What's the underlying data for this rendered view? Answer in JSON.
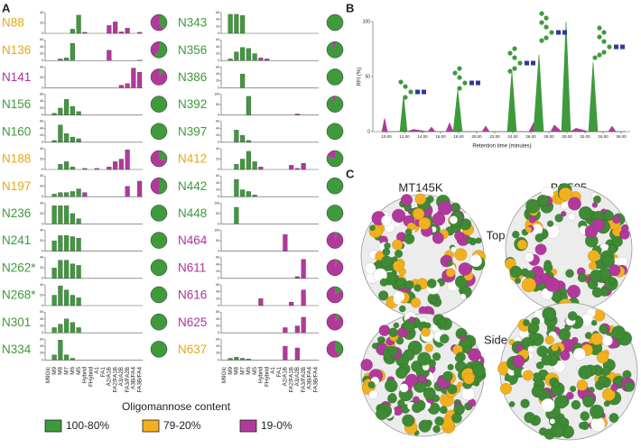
{
  "chart_data": [
    {
      "type": "bar-grid",
      "panel_label": "A",
      "categories": [
        "M9Glc",
        "M9",
        "M8",
        "M7",
        "M6",
        "M5",
        "Hybrid",
        "FHybrid",
        "A1",
        "FA1",
        "A2/A1B",
        "FA2/FA1B",
        "A3/A2B",
        "FA3/FA2B",
        "A3B/FA4",
        "FA3B/FA4"
      ],
      "bar_colors": [
        "#3f9a3c",
        "#3f9a3c",
        "#3f9a3c",
        "#3f9a3c",
        "#3f9a3c",
        "#3f9a3c",
        "#b2399b",
        "#b2399b",
        "#b2399b",
        "#b2399b",
        "#b2399b",
        "#b2399b",
        "#b2399b",
        "#b2399b",
        "#b2399b",
        "#b2399b"
      ],
      "pie_colors": [
        "#3f9a3c",
        "#b2399b"
      ],
      "sites": [
        {
          "name": "N88",
          "color": "#e6a817",
          "ylim": [
            0,
            40
          ],
          "yticks": [
            0,
            20,
            40
          ],
          "values": [
            0,
            0,
            0,
            0,
            8,
            35,
            2,
            0,
            0,
            0,
            15,
            22,
            3,
            10,
            0,
            2
          ],
          "pie": [
            40,
            60
          ]
        },
        {
          "name": "N136",
          "color": "#e6a817",
          "ylim": [
            0,
            60
          ],
          "yticks": [
            0,
            20,
            40,
            60
          ],
          "values": [
            0,
            0,
            5,
            8,
            50,
            0,
            0,
            0,
            0,
            0,
            30,
            0,
            0,
            0,
            0,
            1
          ],
          "pie": [
            60,
            40
          ]
        },
        {
          "name": "N141",
          "color": "#b0329a",
          "ylim": [
            0,
            40
          ],
          "yticks": [
            0,
            20,
            40
          ],
          "values": [
            0,
            0,
            0,
            0,
            0,
            0,
            0,
            0,
            0,
            0,
            0,
            0,
            5,
            8,
            38,
            30
          ],
          "pie": [
            10,
            90
          ]
        },
        {
          "name": "N156",
          "color": "#3f9a3c",
          "ylim": [
            0,
            60
          ],
          "yticks": [
            0,
            20,
            40,
            60
          ],
          "values": [
            0,
            5,
            20,
            45,
            25,
            10,
            0,
            0,
            0,
            0,
            0,
            0,
            0,
            0,
            0,
            0
          ],
          "pie": [
            100,
            0
          ]
        },
        {
          "name": "N160",
          "color": "#3f9a3c",
          "ylim": [
            0,
            60
          ],
          "yticks": [
            0,
            20,
            40,
            60
          ],
          "values": [
            0,
            5,
            50,
            25,
            15,
            10,
            0,
            0,
            0,
            0,
            0,
            0,
            0,
            0,
            0,
            0
          ],
          "pie": [
            100,
            0
          ]
        },
        {
          "name": "N188",
          "color": "#e6a817",
          "ylim": [
            0,
            40
          ],
          "yticks": [
            0,
            20,
            40
          ],
          "values": [
            0,
            0,
            10,
            15,
            5,
            0,
            2,
            0,
            2,
            0,
            5,
            15,
            20,
            38,
            0,
            0
          ],
          "pie": [
            30,
            70
          ]
        },
        {
          "name": "N197",
          "color": "#e6a817",
          "ylim": [
            0,
            40
          ],
          "yticks": [
            0,
            20,
            40
          ],
          "values": [
            0,
            5,
            8,
            8,
            10,
            15,
            8,
            0,
            0,
            0,
            0,
            0,
            0,
            20,
            0,
            30
          ],
          "pie": [
            50,
            50
          ]
        },
        {
          "name": "N236",
          "color": "#3f9a3c",
          "ylim": [
            0,
            40
          ],
          "yticks": [
            0,
            20,
            40
          ],
          "values": [
            0,
            35,
            35,
            35,
            20,
            10,
            0,
            0,
            0,
            0,
            0,
            0,
            0,
            0,
            0,
            0
          ],
          "pie": [
            100,
            0
          ]
        },
        {
          "name": "N241",
          "color": "#3f9a3c",
          "ylim": [
            0,
            40
          ],
          "yticks": [
            0,
            20,
            40
          ],
          "values": [
            0,
            20,
            30,
            30,
            28,
            25,
            0,
            0,
            0,
            0,
            0,
            0,
            0,
            0,
            0,
            0
          ],
          "pie": [
            100,
            0
          ]
        },
        {
          "name": "N262*",
          "color": "#3f9a3c",
          "ylim": [
            0,
            40
          ],
          "yticks": [
            0,
            20,
            40
          ],
          "values": [
            0,
            20,
            35,
            35,
            28,
            25,
            0,
            0,
            0,
            0,
            0,
            0,
            0,
            0,
            0,
            0
          ],
          "pie": [
            100,
            0
          ]
        },
        {
          "name": "N268*",
          "color": "#3f9a3c",
          "ylim": [
            0,
            40
          ],
          "yticks": [
            0,
            20,
            40
          ],
          "values": [
            0,
            20,
            38,
            30,
            20,
            15,
            0,
            0,
            0,
            0,
            0,
            0,
            0,
            0,
            0,
            0
          ],
          "pie": [
            100,
            0
          ]
        },
        {
          "name": "N301",
          "color": "#3f9a3c",
          "ylim": [
            0,
            60
          ],
          "yticks": [
            0,
            20,
            40,
            60
          ],
          "values": [
            0,
            15,
            25,
            40,
            30,
            15,
            0,
            0,
            0,
            0,
            0,
            0,
            0,
            0,
            0,
            0
          ],
          "pie": [
            100,
            0
          ]
        },
        {
          "name": "N334",
          "color": "#3f9a3c",
          "ylim": [
            0,
            60
          ],
          "yticks": [
            0,
            20,
            40,
            60
          ],
          "values": [
            0,
            15,
            58,
            15,
            5,
            0,
            0,
            0,
            0,
            0,
            0,
            0,
            0,
            0,
            0,
            0
          ],
          "pie": [
            100,
            0
          ]
        },
        {
          "name": "N343",
          "color": "#3f9a3c",
          "ylim": [
            0,
            60
          ],
          "yticks": [
            0,
            20,
            40,
            60
          ],
          "values": [
            0,
            55,
            55,
            52,
            0,
            0,
            0,
            0,
            0,
            0,
            0,
            0,
            0,
            0,
            0,
            0
          ],
          "pie": [
            100,
            0
          ]
        },
        {
          "name": "N356",
          "color": "#3f9a3c",
          "ylim": [
            0,
            60
          ],
          "yticks": [
            0,
            20,
            40,
            60
          ],
          "values": [
            0,
            5,
            25,
            38,
            35,
            20,
            8,
            5,
            0,
            0,
            0,
            0,
            0,
            0,
            0,
            0
          ],
          "pie": [
            95,
            5
          ]
        },
        {
          "name": "N386",
          "color": "#3f9a3c",
          "ylim": [
            0,
            60
          ],
          "yticks": [
            0,
            20,
            40,
            60
          ],
          "values": [
            0,
            0,
            0,
            40,
            0,
            0,
            0,
            0,
            0,
            0,
            0,
            0,
            0,
            0,
            0,
            0
          ],
          "pie": [
            100,
            0
          ]
        },
        {
          "name": "N392",
          "color": "#3f9a3c",
          "ylim": [
            0,
            100
          ],
          "yticks": [
            0,
            50,
            100
          ],
          "values": [
            0,
            0,
            0,
            0,
            90,
            0,
            0,
            0,
            0,
            0,
            0,
            0,
            5,
            0,
            0,
            0
          ],
          "pie": [
            95,
            5
          ]
        },
        {
          "name": "N397",
          "color": "#3f9a3c",
          "ylim": [
            0,
            60
          ],
          "yticks": [
            0,
            20,
            40,
            60
          ],
          "values": [
            0,
            0,
            35,
            20,
            5,
            0,
            0,
            0,
            0,
            0,
            0,
            0,
            0,
            0,
            0,
            0
          ],
          "pie": [
            100,
            0
          ]
        },
        {
          "name": "N412",
          "color": "#e6a817",
          "ylim": [
            0,
            40
          ],
          "yticks": [
            0,
            20,
            40
          ],
          "values": [
            0,
            0,
            10,
            20,
            35,
            15,
            5,
            0,
            0,
            0,
            0,
            8,
            2,
            12,
            0,
            0
          ],
          "pie": [
            80,
            20
          ]
        },
        {
          "name": "N442",
          "color": "#3f9a3c",
          "ylim": [
            0,
            60
          ],
          "yticks": [
            0,
            20,
            40,
            60
          ],
          "values": [
            0,
            0,
            50,
            20,
            15,
            5,
            0,
            0,
            0,
            0,
            0,
            0,
            0,
            0,
            0,
            0
          ],
          "pie": [
            100,
            0
          ]
        },
        {
          "name": "N448",
          "color": "#3f9a3c",
          "ylim": [
            0,
            100
          ],
          "yticks": [
            0,
            50,
            100
          ],
          "values": [
            0,
            0,
            80,
            0,
            0,
            0,
            0,
            0,
            0,
            0,
            0,
            0,
            0,
            0,
            0,
            0
          ],
          "pie": [
            100,
            0
          ]
        },
        {
          "name": "N464",
          "color": "#b0329a",
          "ylim": [
            0,
            100
          ],
          "yticks": [
            0,
            50,
            100
          ],
          "values": [
            0,
            0,
            0,
            0,
            0,
            0,
            0,
            0,
            0,
            0,
            80,
            0,
            0,
            0,
            0,
            0
          ],
          "pie": [
            5,
            95
          ]
        },
        {
          "name": "N611",
          "color": "#b0329a",
          "ylim": [
            0,
            60
          ],
          "yticks": [
            0,
            20,
            40,
            60
          ],
          "values": [
            0,
            0,
            0,
            0,
            0,
            0,
            0,
            0,
            0,
            0,
            0,
            0,
            5,
            55,
            0,
            0
          ],
          "pie": [
            5,
            95
          ]
        },
        {
          "name": "N616",
          "color": "#b0329a",
          "ylim": [
            0,
            60
          ],
          "yticks": [
            0,
            20,
            40,
            60
          ],
          "values": [
            0,
            0,
            0,
            0,
            0,
            0,
            20,
            0,
            0,
            0,
            0,
            10,
            0,
            45,
            0,
            0
          ],
          "pie": [
            15,
            85
          ]
        },
        {
          "name": "N625",
          "color": "#b0329a",
          "ylim": [
            0,
            60
          ],
          "yticks": [
            0,
            20,
            40,
            60
          ],
          "values": [
            0,
            0,
            0,
            0,
            0,
            0,
            0,
            0,
            0,
            0,
            15,
            0,
            20,
            45,
            0,
            0
          ],
          "pie": [
            10,
            90
          ]
        },
        {
          "name": "N637",
          "color": "#e6a817",
          "ylim": [
            0,
            60
          ],
          "yticks": [
            0,
            20,
            40,
            60
          ],
          "values": [
            0,
            5,
            8,
            5,
            3,
            0,
            0,
            0,
            0,
            0,
            40,
            0,
            35,
            0,
            0,
            0
          ],
          "pie": [
            40,
            60
          ]
        }
      ],
      "legend": {
        "title": "Oligomannose content",
        "items": [
          {
            "name": "100-80%",
            "color": "#3f9a3c"
          },
          {
            "name": "79-20%",
            "color": "#f2b01e"
          },
          {
            "name": "19-0%",
            "color": "#b2399b"
          }
        ]
      }
    },
    {
      "type": "area",
      "panel_label": "B",
      "ylabel": "RFI (%)",
      "xlabel": "Retention time (minutes)",
      "x": [
        9.5,
        9.8,
        10.1,
        11.5,
        11.9,
        12.3,
        13,
        14.6,
        15,
        15.4,
        16.6,
        17,
        17.4,
        17.9,
        18.4,
        20.6,
        21,
        21.4,
        23.4,
        23.9,
        24.4,
        25.8,
        26.3,
        26.9,
        27.4,
        28.2,
        28.6,
        29.4,
        29.9,
        30.4,
        31,
        32.4,
        32.9,
        33.4,
        34.6,
        35,
        35.4,
        36.5
      ],
      "series": [
        {
          "color": "#b2399b",
          "values": [
            0,
            12,
            0,
            0,
            0,
            0,
            2,
            0,
            4,
            0,
            0,
            8,
            0,
            0,
            0,
            0,
            5,
            0,
            0,
            0,
            0,
            0,
            8,
            0,
            0,
            0,
            6,
            0,
            0,
            0,
            3,
            0,
            0,
            0,
            0,
            5,
            0,
            0
          ]
        },
        {
          "color": "#3f9a3c",
          "values": [
            0,
            0,
            0,
            0,
            33,
            0,
            0,
            0,
            0,
            0,
            0,
            0,
            0,
            38,
            0,
            0,
            0,
            0,
            0,
            55,
            0,
            0,
            0,
            70,
            0,
            0,
            0,
            0,
            100,
            0,
            0,
            0,
            63,
            0,
            0,
            0,
            0,
            0
          ]
        }
      ],
      "xlim": [
        8.5,
        37
      ],
      "ylim": [
        0,
        100
      ],
      "yticks": [
        0,
        50,
        100
      ],
      "xticks": [
        {
          "value": 10,
          "label": "10.00"
        },
        {
          "value": 12,
          "label": "12.00"
        },
        {
          "value": 14,
          "label": "14.00"
        },
        {
          "value": 16,
          "label": "16.00"
        },
        {
          "value": 18,
          "label": "18.00"
        },
        {
          "value": 20,
          "label": "20.00"
        },
        {
          "value": 22,
          "label": "22.00"
        },
        {
          "value": 24,
          "label": "24.00"
        },
        {
          "value": 26,
          "label": "26.00"
        },
        {
          "value": 28,
          "label": "28.00"
        },
        {
          "value": 30,
          "label": "30.00"
        },
        {
          "value": 32,
          "label": "32.00"
        },
        {
          "value": 34,
          "label": "34.00"
        },
        {
          "value": 36,
          "label": "36.00"
        }
      ]
    }
  ],
  "panel_c": {
    "label": "C",
    "columns": [
      "MT145K",
      "BG505"
    ],
    "rows": [
      "Top",
      "Side"
    ]
  }
}
